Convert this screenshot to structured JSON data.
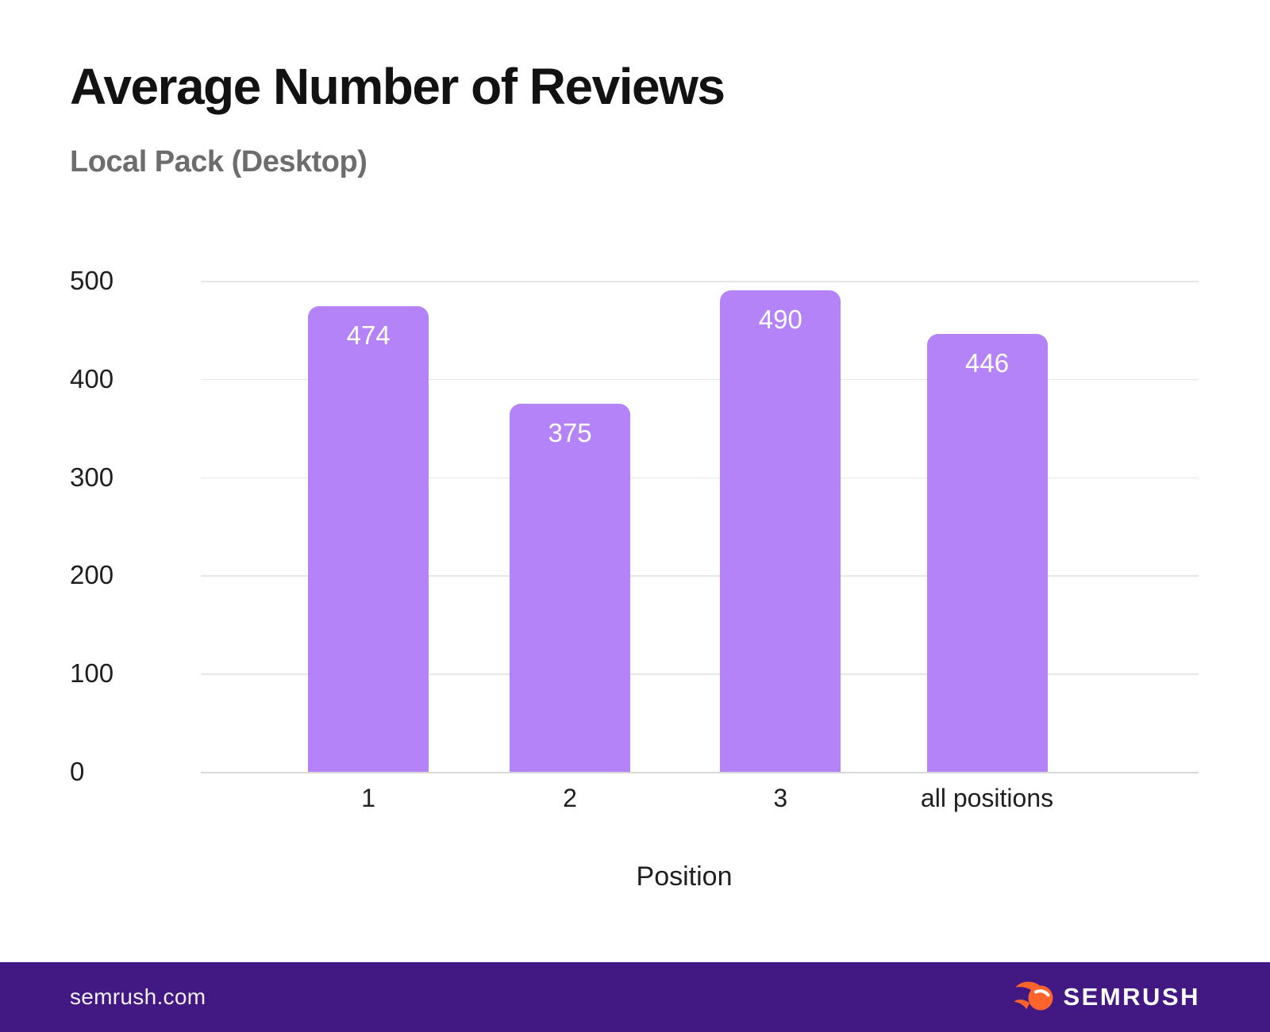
{
  "title": "Average Number of Reviews",
  "subtitle": "Local Pack (Desktop)",
  "axis": {
    "xlabel": "Position"
  },
  "footer": {
    "site": "semrush.com",
    "brand": "SEMRUSH"
  },
  "colors": {
    "bar": "#b583f8",
    "value_label": "#ffffff",
    "grid": "#e6e6e6",
    "axis_text": "#1f1f1f",
    "title_text": "#121212",
    "subtitle_text": "#6d6d6d",
    "footer_bg": "#421983",
    "logo_orange": "#ff642d"
  },
  "chart_data": {
    "type": "bar",
    "categories": [
      "1",
      "2",
      "3",
      "all positions"
    ],
    "values": [
      474,
      375,
      490,
      446
    ],
    "title": "Average Number of Reviews",
    "subtitle": "Local Pack (Desktop)",
    "xlabel": "Position",
    "ylabel": "",
    "ylim": [
      0,
      500
    ],
    "yticks": [
      0,
      100,
      200,
      300,
      400,
      500
    ],
    "grid": true,
    "legend": false,
    "bar_color": "#b583f8",
    "value_labels_inside_bars": true
  }
}
